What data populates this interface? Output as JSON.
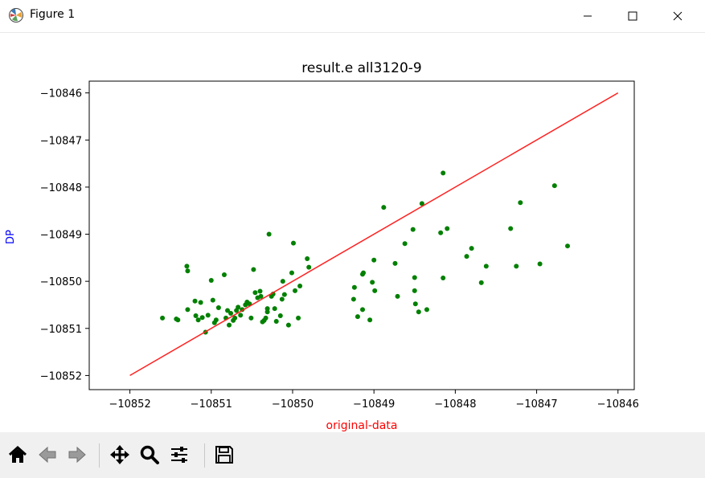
{
  "window": {
    "title": "Figure 1",
    "app_icon": "matplotlib-icon",
    "controls": [
      "minimize-icon",
      "maximize-icon",
      "close-icon"
    ]
  },
  "chart_data": {
    "type": "scatter",
    "title": "result.e all3120-9",
    "xlabel": "original-data",
    "ylabel": "DP",
    "xlabel_color": "#ff0000",
    "ylabel_color": "#0000ff",
    "xlim": [
      -10852.5,
      -10845.8
    ],
    "ylim": [
      -10852.3,
      -10845.75
    ],
    "xticks": [
      -10852,
      -10851,
      -10850,
      -10849,
      -10848,
      -10847,
      -10846
    ],
    "yticks": [
      -10852,
      -10851,
      -10850,
      -10849,
      -10848,
      -10847,
      -10846
    ],
    "xtick_labels": [
      "−10852",
      "−10851",
      "−10850",
      "−10849",
      "−10848",
      "−10847",
      "−10846"
    ],
    "ytick_labels": [
      "−10852",
      "−10851",
      "−10850",
      "−10849",
      "−10848",
      "−10847",
      "−10846"
    ],
    "grid": false,
    "point_color": "#008000",
    "line_color": "#ff2020",
    "reference_line": {
      "x": [
        -10852,
        -10846
      ],
      "y": [
        -10852,
        -10846
      ]
    },
    "points": [
      [
        -10851.6,
        -10850.78
      ],
      [
        -10851.43,
        -10850.8
      ],
      [
        -10851.41,
        -10850.82
      ],
      [
        -10851.3,
        -10849.68
      ],
      [
        -10851.29,
        -10849.78
      ],
      [
        -10851.29,
        -10850.6
      ],
      [
        -10851.2,
        -10850.42
      ],
      [
        -10851.19,
        -10850.73
      ],
      [
        -10851.16,
        -10850.82
      ],
      [
        -10851.13,
        -10850.45
      ],
      [
        -10851.11,
        -10850.77
      ],
      [
        -10851.07,
        -10851.08
      ],
      [
        -10851.04,
        -10850.72
      ],
      [
        -10851.0,
        -10849.98
      ],
      [
        -10850.98,
        -10850.4
      ],
      [
        -10850.96,
        -10850.88
      ],
      [
        -10850.94,
        -10850.82
      ],
      [
        -10850.91,
        -10850.56
      ],
      [
        -10850.84,
        -10849.86
      ],
      [
        -10850.82,
        -10850.78
      ],
      [
        -10850.8,
        -10850.62
      ],
      [
        -10850.78,
        -10850.93
      ],
      [
        -10850.76,
        -10850.68
      ],
      [
        -10850.73,
        -10850.83
      ],
      [
        -10850.71,
        -10850.78
      ],
      [
        -10850.69,
        -10850.62
      ],
      [
        -10850.67,
        -10850.55
      ],
      [
        -10850.64,
        -10850.72
      ],
      [
        -10850.62,
        -10850.6
      ],
      [
        -10850.58,
        -10850.5
      ],
      [
        -10850.56,
        -10850.44
      ],
      [
        -10850.53,
        -10850.48
      ],
      [
        -10850.51,
        -10850.78
      ],
      [
        -10850.48,
        -10849.75
      ],
      [
        -10850.46,
        -10850.24
      ],
      [
        -10850.43,
        -10850.35
      ],
      [
        -10850.4,
        -10850.21
      ],
      [
        -10850.39,
        -10850.32
      ],
      [
        -10850.37,
        -10850.86
      ],
      [
        -10850.35,
        -10850.83
      ],
      [
        -10850.33,
        -10850.78
      ],
      [
        -10850.31,
        -10850.58
      ],
      [
        -10850.31,
        -10850.65
      ],
      [
        -10850.29,
        -10849.0
      ],
      [
        -10850.26,
        -10850.32
      ],
      [
        -10850.24,
        -10850.27
      ],
      [
        -10850.22,
        -10850.58
      ],
      [
        -10850.2,
        -10850.85
      ],
      [
        -10850.15,
        -10850.73
      ],
      [
        -10850.13,
        -10850.38
      ],
      [
        -10850.12,
        -10850.0
      ],
      [
        -10850.1,
        -10850.28
      ],
      [
        -10850.05,
        -10850.93
      ],
      [
        -10850.01,
        -10849.82
      ],
      [
        -10849.99,
        -10849.19
      ],
      [
        -10849.97,
        -10850.2
      ],
      [
        -10849.93,
        -10850.78
      ],
      [
        -10849.91,
        -10850.1
      ],
      [
        -10849.82,
        -10849.52
      ],
      [
        -10849.8,
        -10849.7
      ],
      [
        -10849.25,
        -10850.38
      ],
      [
        -10849.24,
        -10850.13
      ],
      [
        -10849.2,
        -10850.75
      ],
      [
        -10849.14,
        -10849.85
      ],
      [
        -10849.13,
        -10849.82
      ],
      [
        -10849.14,
        -10850.6
      ],
      [
        -10849.05,
        -10850.82
      ],
      [
        -10849.02,
        -10850.02
      ],
      [
        -10849.0,
        -10849.55
      ],
      [
        -10848.99,
        -10850.2
      ],
      [
        -10848.88,
        -10848.43
      ],
      [
        -10848.74,
        -10849.62
      ],
      [
        -10848.71,
        -10850.32
      ],
      [
        -10848.62,
        -10849.2
      ],
      [
        -10848.52,
        -10848.9
      ],
      [
        -10848.5,
        -10849.92
      ],
      [
        -10848.5,
        -10850.2
      ],
      [
        -10848.49,
        -10850.48
      ],
      [
        -10848.45,
        -10850.65
      ],
      [
        -10848.41,
        -10848.35
      ],
      [
        -10848.35,
        -10850.6
      ],
      [
        -10848.15,
        -10847.7
      ],
      [
        -10848.18,
        -10848.97
      ],
      [
        -10848.15,
        -10849.93
      ],
      [
        -10848.1,
        -10848.88
      ],
      [
        -10847.86,
        -10849.47
      ],
      [
        -10847.8,
        -10849.3
      ],
      [
        -10847.68,
        -10850.03
      ],
      [
        -10847.62,
        -10849.68
      ],
      [
        -10847.32,
        -10848.88
      ],
      [
        -10847.25,
        -10849.68
      ],
      [
        -10847.2,
        -10848.33
      ],
      [
        -10846.96,
        -10849.63
      ],
      [
        -10846.78,
        -10847.97
      ],
      [
        -10846.62,
        -10849.25
      ]
    ]
  },
  "toolbar": {
    "buttons": [
      "home-icon",
      "back-icon",
      "forward-icon",
      "pan-icon",
      "zoom-icon",
      "configure-subplots-icon",
      "save-icon"
    ]
  }
}
